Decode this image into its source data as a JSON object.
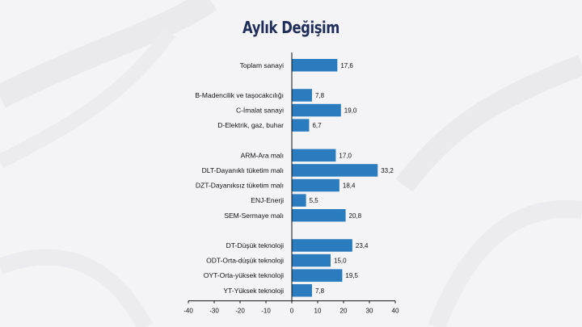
{
  "title": "Aylık Değişim",
  "colors": {
    "bar": "#2b7bbf",
    "axis": "#111111",
    "title": "#1f2d5a"
  },
  "chart_data": {
    "type": "bar",
    "orientation": "horizontal",
    "title": "Aylık Değişim",
    "xlim": [
      -40,
      40
    ],
    "xticks": [
      -40,
      -30,
      -20,
      -10,
      0,
      10,
      20,
      30,
      40
    ],
    "grid": false,
    "groups": [
      {
        "categories": [
          "Toplam sanayi"
        ],
        "values": [
          17.6
        ],
        "labels": [
          "17,6"
        ]
      },
      {
        "categories": [
          "B-Madencilik ve taşocakcılığı",
          "C-İmalat sanayi",
          "D-Elektrik, gaz, buhar"
        ],
        "values": [
          7.8,
          19.0,
          6.7
        ],
        "labels": [
          "7,8",
          "19,0",
          "6,7"
        ]
      },
      {
        "categories": [
          "ARM-Ara malı",
          "DLT-Dayanıklı tüketim malı",
          "DZT-Dayanıksız tüketim malı",
          "ENJ-Enerji",
          "SEM-Sermaye malı"
        ],
        "values": [
          17.0,
          33.2,
          18.4,
          5.5,
          20.8
        ],
        "labels": [
          "17,0",
          "33,2",
          "18,4",
          "5,5",
          "20,8"
        ]
      },
      {
        "categories": [
          "DT-Düşük teknoloji",
          "ODT-Orta-düşük teknoloji",
          "OYT-Orta-yüksek teknoloji",
          "YT-Yüksek teknoloji"
        ],
        "values": [
          23.4,
          15.0,
          19.5,
          7.8
        ],
        "labels": [
          "23,4",
          "15,0",
          "19,5",
          "7,8"
        ]
      }
    ]
  }
}
